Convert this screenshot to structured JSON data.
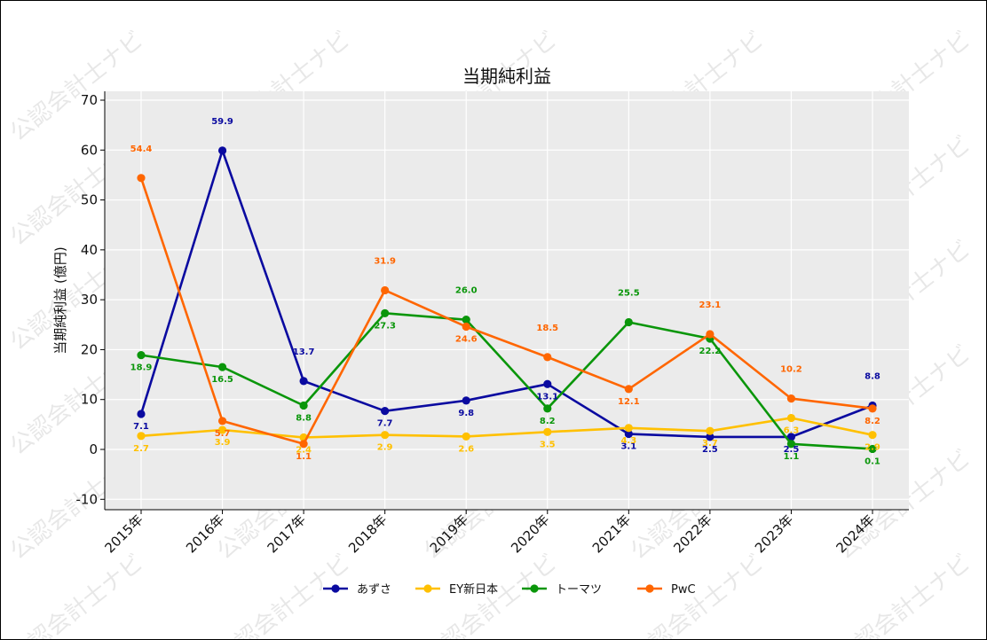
{
  "watermark": "公認会計士ナビ",
  "chart_data": {
    "type": "line",
    "title": "当期純利益",
    "xlabel": "",
    "ylabel": "当期純利益 (億円)",
    "ylim": [
      -12,
      72
    ],
    "yticks": [
      -10,
      0,
      10,
      20,
      30,
      40,
      50,
      60,
      70
    ],
    "grid": true,
    "legend_position": "bottom",
    "categories": [
      "2015年",
      "2016年",
      "2017年",
      "2018年",
      "2019年",
      "2020年",
      "2021年",
      "2022年",
      "2023年",
      "2024年"
    ],
    "series": [
      {
        "name": "あずさ",
        "color": "#0a0aa0",
        "values": [
          7.1,
          59.9,
          13.7,
          7.7,
          9.8,
          13.1,
          3.1,
          2.5,
          2.5,
          8.8
        ]
      },
      {
        "name": "EY新日本",
        "color": "#ffc000",
        "values": [
          2.7,
          3.9,
          2.4,
          2.9,
          2.6,
          3.5,
          4.3,
          3.7,
          6.3,
          2.9
        ]
      },
      {
        "name": "トーマツ",
        "color": "#0a960a",
        "values": [
          18.9,
          16.5,
          8.8,
          27.3,
          26.0,
          8.2,
          25.5,
          22.2,
          1.1,
          0.1
        ]
      },
      {
        "name": "PwC",
        "color": "#ff6600",
        "values": [
          54.4,
          5.7,
          1.1,
          31.9,
          24.6,
          18.5,
          12.1,
          23.1,
          10.2,
          8.2
        ]
      }
    ]
  }
}
